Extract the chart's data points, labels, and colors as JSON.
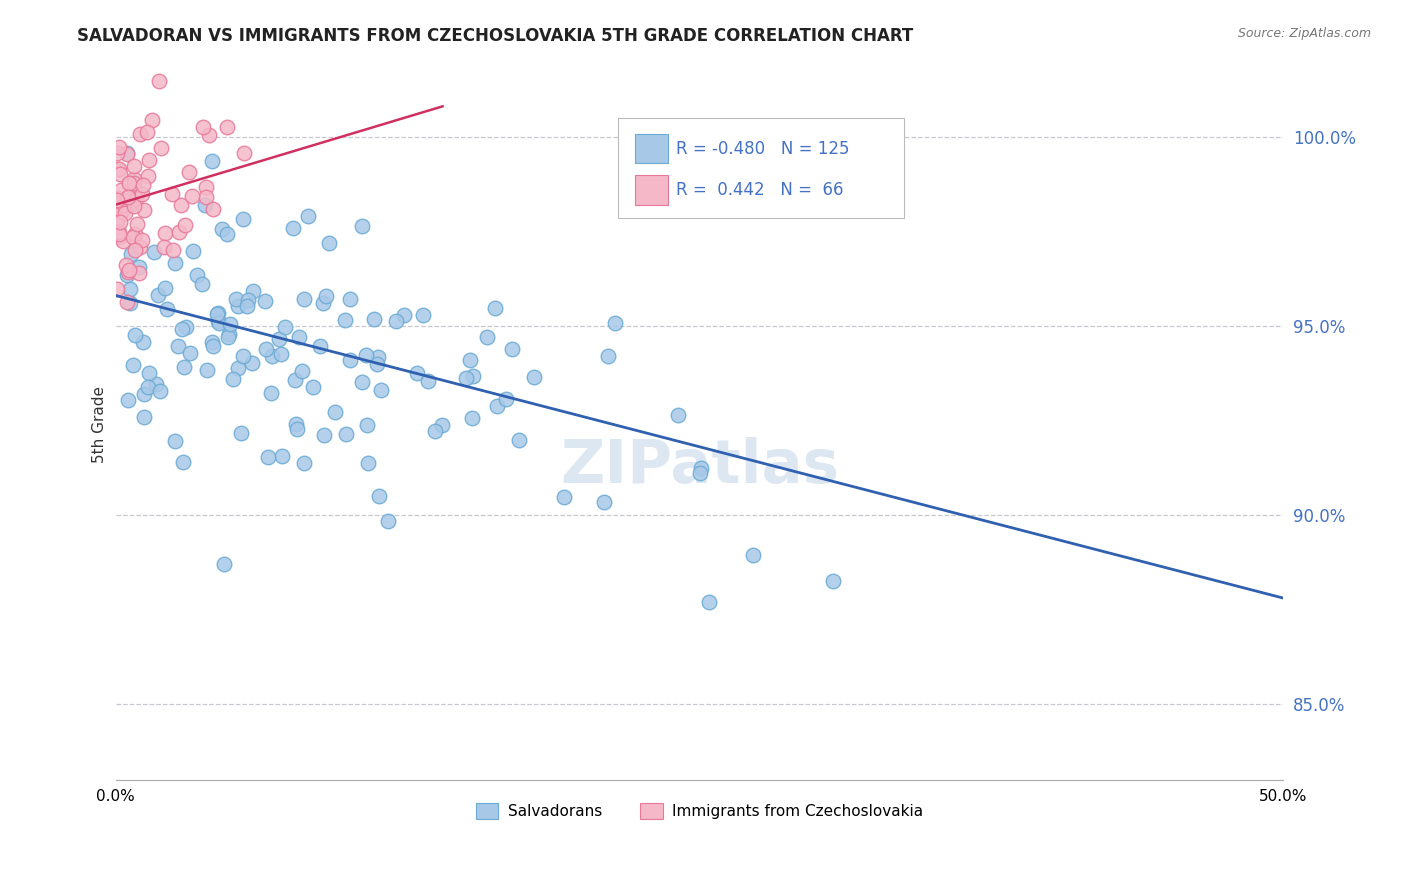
{
  "title": "SALVADORAN VS IMMIGRANTS FROM CZECHOSLOVAKIA 5TH GRADE CORRELATION CHART",
  "source": "Source: ZipAtlas.com",
  "ylabel": "5th Grade",
  "yticks": [
    85.0,
    90.0,
    95.0,
    100.0
  ],
  "ytick_labels": [
    "85.0%",
    "90.0%",
    "95.0%",
    "100.0%"
  ],
  "legend_r_blue": "-0.480",
  "legend_n_blue": "125",
  "legend_r_pink": "0.442",
  "legend_n_pink": "66",
  "blue_color": "#a8c8e8",
  "blue_edge_color": "#6aaad4",
  "pink_color": "#f4b8c8",
  "pink_edge_color": "#e87898",
  "trend_blue_color": "#3060b0",
  "trend_pink_color": "#d03060",
  "watermark": "ZIPatlas",
  "xlim": [
    0,
    50
  ],
  "ylim": [
    83.0,
    101.8
  ],
  "trend_blue_x0": 0,
  "trend_blue_y0": 95.8,
  "trend_blue_x1": 50,
  "trend_blue_y1": 87.8,
  "trend_pink_x0": 0.0,
  "trend_pink_y0": 98.2,
  "trend_pink_x1": 14.0,
  "trend_pink_y1": 100.8
}
